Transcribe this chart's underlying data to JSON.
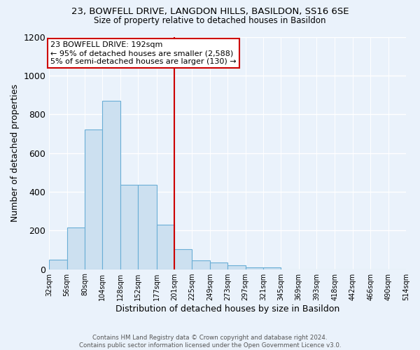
{
  "title1": "23, BOWFELL DRIVE, LANGDON HILLS, BASILDON, SS16 6SE",
  "title2": "Size of property relative to detached houses in Basildon",
  "xlabel": "Distribution of detached houses by size in Basildon",
  "ylabel": "Number of detached properties",
  "footnote": "Contains HM Land Registry data © Crown copyright and database right 2024.\nContains public sector information licensed under the Open Government Licence v3.0.",
  "bin_labels": [
    "32sqm",
    "56sqm",
    "80sqm",
    "104sqm",
    "128sqm",
    "152sqm",
    "177sqm",
    "201sqm",
    "225sqm",
    "249sqm",
    "273sqm",
    "297sqm",
    "321sqm",
    "345sqm",
    "369sqm",
    "393sqm",
    "418sqm",
    "442sqm",
    "466sqm",
    "490sqm",
    "514sqm"
  ],
  "bar_heights": [
    50,
    215,
    720,
    870,
    435,
    435,
    230,
    105,
    45,
    35,
    20,
    10,
    10,
    0,
    0,
    0,
    0,
    0,
    0,
    0
  ],
  "bar_color": "#cce0f0",
  "bar_edge_color": "#6aaed6",
  "background_color": "#eaf2fb",
  "grid_color": "#ffffff",
  "vline_x_index": 7,
  "vline_color": "#cc0000",
  "annotation_text": "23 BOWFELL DRIVE: 192sqm\n← 95% of detached houses are smaller (2,588)\n5% of semi-detached houses are larger (130) →",
  "annotation_box_color": "#ffffff",
  "annotation_box_edge": "#cc0000",
  "ylim": [
    0,
    1200
  ],
  "yticks": [
    0,
    200,
    400,
    600,
    800,
    1000,
    1200
  ]
}
